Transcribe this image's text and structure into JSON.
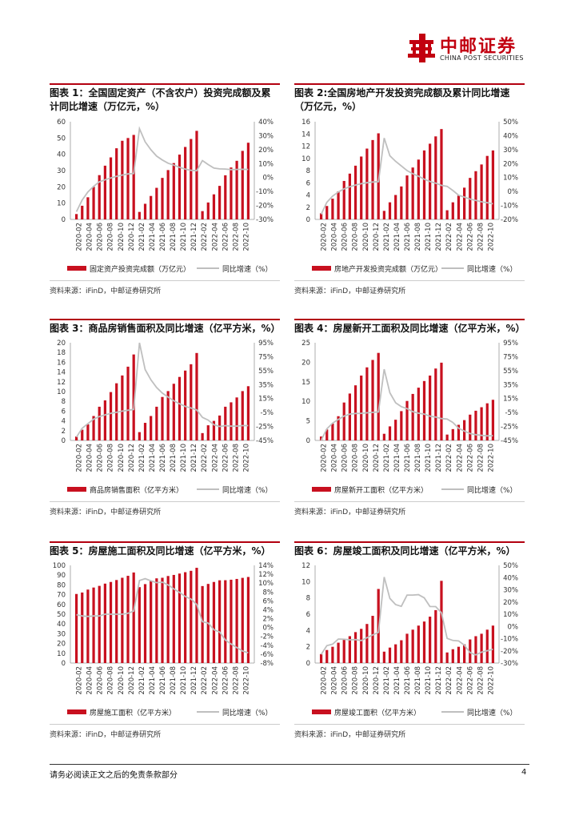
{
  "header": {
    "logo_cn": "中邮证券",
    "logo_en": "CHINA POST SECURITIES"
  },
  "colors": {
    "bar": "#c8101f",
    "line": "#bfbfbf",
    "accent": "#b3000f"
  },
  "x_labels": [
    "2020-02",
    "2020-04",
    "2020-06",
    "2020-08",
    "2020-10",
    "2020-12",
    "2021-02",
    "2021-04",
    "2021-06",
    "2021-08",
    "2021-10",
    "2021-12",
    "2022-02",
    "2022-04",
    "2022-06",
    "2022-08",
    "2022-10"
  ],
  "source_text": "资料来源：iFinD，中邮证券研究所",
  "footer": {
    "disclaimer": "请务必阅读正文之后的免责条款部分",
    "page": "4"
  },
  "chart_data": [
    {
      "type": "bar",
      "title": "图表 1：全国固定资产（不含农户）投资完成额及累计同比增速（万亿元，%）",
      "categories": [
        "2020-02",
        "2020-03",
        "2020-04",
        "2020-05",
        "2020-06",
        "2020-07",
        "2020-08",
        "2020-09",
        "2020-10",
        "2020-11",
        "2020-12",
        "2021-02",
        "2021-03",
        "2021-04",
        "2021-05",
        "2021-06",
        "2021-07",
        "2021-08",
        "2021-09",
        "2021-10",
        "2021-11",
        "2021-12",
        "2022-02",
        "2022-03",
        "2022-04",
        "2022-05",
        "2022-06",
        "2022-07",
        "2022-08",
        "2022-09",
        "2022-10"
      ],
      "series": [
        {
          "name": "固定资产投资完成额（万亿元）",
          "axis": "left",
          "values": [
            3.3,
            8.4,
            13.6,
            20.0,
            27.2,
            33.0,
            38.1,
            43.7,
            48.3,
            50.0,
            51.9,
            4.6,
            9.6,
            14.4,
            19.4,
            25.5,
            30.3,
            34.6,
            39.8,
            44.5,
            49.4,
            54.4,
            5.1,
            10.4,
            15.4,
            20.6,
            27.1,
            31.9,
            36.0,
            42.1,
            47.1
          ]
        },
        {
          "name": "同比增速（%）",
          "axis": "right",
          "values": [
            -24.5,
            -16.1,
            -10.3,
            -6.3,
            -3.1,
            -1.6,
            -0.3,
            0.8,
            1.8,
            2.6,
            2.9,
            35.0,
            25.6,
            19.9,
            15.4,
            12.6,
            10.3,
            8.9,
            7.3,
            6.1,
            5.2,
            4.9,
            12.2,
            9.3,
            6.8,
            6.2,
            6.1,
            5.7,
            5.8,
            5.9,
            5.8
          ]
        }
      ],
      "ylim_left": [
        0,
        60
      ],
      "yticks_left": [
        "60",
        "50",
        "40",
        "30",
        "20",
        "10",
        "0"
      ],
      "ylim_right": [
        -30,
        40
      ],
      "yticks_right": [
        "40%",
        "30%",
        "20%",
        "10%",
        "0%",
        "-10%",
        "-20%",
        "-30%"
      ],
      "legend": "bottom"
    },
    {
      "type": "bar",
      "title": "图表 2:全国房地产开发投资完成额及累计同比增速（万亿元，%）",
      "categories": [
        "2020-02",
        "2020-03",
        "2020-04",
        "2020-05",
        "2020-06",
        "2020-07",
        "2020-08",
        "2020-09",
        "2020-10",
        "2020-11",
        "2020-12",
        "2021-02",
        "2021-03",
        "2021-04",
        "2021-05",
        "2021-06",
        "2021-07",
        "2021-08",
        "2021-09",
        "2021-10",
        "2021-11",
        "2021-12",
        "2022-02",
        "2022-03",
        "2022-04",
        "2022-05",
        "2022-06",
        "2022-07",
        "2022-08",
        "2022-09",
        "2022-10"
      ],
      "series": [
        {
          "name": "房地产开发投资完成额（万亿元）",
          "axis": "left",
          "values": [
            1.0,
            2.2,
            3.4,
            4.6,
            6.3,
            7.5,
            8.8,
            10.3,
            11.6,
            13.0,
            14.1,
            1.4,
            2.8,
            4.0,
            5.4,
            7.2,
            8.5,
            9.8,
            11.3,
            12.4,
            13.6,
            14.8,
            1.5,
            2.8,
            3.9,
            5.2,
            6.8,
            7.9,
            9.0,
            10.4,
            11.3
          ]
        },
        {
          "name": "同比增速（%）",
          "axis": "right",
          "values": [
            -16.3,
            -7.7,
            -3.3,
            -0.3,
            1.9,
            3.4,
            4.6,
            5.6,
            6.3,
            6.8,
            7.0,
            38.3,
            25.6,
            21.6,
            18.3,
            15.0,
            12.7,
            10.9,
            8.8,
            7.2,
            6.0,
            4.4,
            3.7,
            0.7,
            -2.7,
            -4.0,
            -5.4,
            -6.4,
            -7.4,
            -8.0,
            -8.8
          ]
        }
      ],
      "ylim_left": [
        0,
        16
      ],
      "yticks_left": [
        "16",
        "14",
        "12",
        "10",
        "8",
        "6",
        "4",
        "2",
        "0"
      ],
      "ylim_right": [
        -20,
        50
      ],
      "yticks_right": [
        "50%",
        "40%",
        "30%",
        "20%",
        "10%",
        "0%",
        "-10%",
        "-20%"
      ],
      "legend": "bottom"
    },
    {
      "type": "bar",
      "title": "图表 3：商品房销售面积及同比增速（亿平方米，%）",
      "categories": [
        "2020-02",
        "2020-03",
        "2020-04",
        "2020-05",
        "2020-06",
        "2020-07",
        "2020-08",
        "2020-09",
        "2020-10",
        "2020-11",
        "2020-12",
        "2021-02",
        "2021-03",
        "2021-04",
        "2021-05",
        "2021-06",
        "2021-07",
        "2021-08",
        "2021-09",
        "2021-10",
        "2021-11",
        "2021-12",
        "2022-02",
        "2022-03",
        "2022-04",
        "2022-05",
        "2022-06",
        "2022-07",
        "2022-08",
        "2022-09",
        "2022-10"
      ],
      "series": [
        {
          "name": "商品房销售面积（亿平方米）",
          "axis": "left",
          "values": [
            0.8,
            2.2,
            3.3,
            5.0,
            6.9,
            8.2,
            9.9,
            11.7,
            13.3,
            15.1,
            17.6,
            1.7,
            3.6,
            5.0,
            6.9,
            8.9,
            10.1,
            11.6,
            13.0,
            14.3,
            15.6,
            17.9,
            1.5,
            3.1,
            4.0,
            5.1,
            6.9,
            7.8,
            8.8,
            10.1,
            11.1
          ]
        },
        {
          "name": "同比增速（%）",
          "axis": "right",
          "values": [
            -39.9,
            -26.3,
            -19.3,
            -12.3,
            -8.4,
            -5.8,
            -3.3,
            -1.8,
            0,
            1.3,
            2.6,
            104.9,
            63.8,
            48.1,
            36.3,
            27.7,
            21.5,
            15.9,
            11.3,
            7.3,
            4.8,
            1.9,
            -9.6,
            -13.8,
            -20.9,
            -23.6,
            -22.2,
            -23.1,
            -23.0,
            -22.2,
            -22.3
          ]
        }
      ],
      "ylim_left": [
        0,
        20
      ],
      "yticks_left": [
        "20",
        "18",
        "16",
        "14",
        "12",
        "10",
        "8",
        "6",
        "4",
        "2",
        "0"
      ],
      "ylim_right": [
        -45,
        105
      ],
      "yticks_right": [
        "95%",
        "75%",
        "55%",
        "35%",
        "15%",
        "-5%",
        "-25%",
        "-45%"
      ],
      "legend": "bottom"
    },
    {
      "type": "bar",
      "title": "图表 4：房屋新开工面积及同比增速（亿平方米，%）",
      "categories": [
        "2020-02",
        "2020-03",
        "2020-04",
        "2020-05",
        "2020-06",
        "2020-07",
        "2020-08",
        "2020-09",
        "2020-10",
        "2020-11",
        "2020-12",
        "2021-02",
        "2021-03",
        "2021-04",
        "2021-05",
        "2021-06",
        "2021-07",
        "2021-08",
        "2021-09",
        "2021-10",
        "2021-11",
        "2021-12",
        "2022-02",
        "2022-03",
        "2022-04",
        "2022-05",
        "2022-06",
        "2022-07",
        "2022-08",
        "2022-09",
        "2022-10"
      ],
      "series": [
        {
          "name": "房屋新开工面积（亿平方米）",
          "axis": "left",
          "values": [
            1.0,
            2.8,
            4.3,
            6.2,
            9.7,
            12.0,
            14.1,
            16.6,
            18.7,
            20.6,
            22.4,
            1.7,
            3.6,
            5.3,
            7.5,
            10.1,
            11.9,
            13.5,
            15.2,
            16.6,
            18.4,
            19.9,
            1.5,
            2.9,
            4.0,
            5.2,
            6.6,
            7.6,
            8.5,
            9.5,
            10.4
          ]
        },
        {
          "name": "同比增速（%）",
          "axis": "right",
          "values": [
            -44.9,
            -27.2,
            -18.4,
            -12.8,
            -7.6,
            -4.5,
            -3.6,
            -3.4,
            -2.6,
            -2.0,
            -1.2,
            64.3,
            28.2,
            12.8,
            6.9,
            3.8,
            -0.9,
            -3.2,
            -4.5,
            -7.7,
            -9.1,
            -11.4,
            -12.2,
            -17.5,
            -26.3,
            -30.6,
            -34.4,
            -36.1,
            -37.2,
            -38.0,
            -37.8
          ]
        }
      ],
      "ylim_left": [
        0,
        25
      ],
      "yticks_left": [
        "25",
        "20",
        "15",
        "10",
        "5",
        "0"
      ],
      "ylim_right": [
        -45,
        105
      ],
      "yticks_right": [
        "95%",
        "75%",
        "55%",
        "35%",
        "15%",
        "-5%",
        "-25%",
        "-45%"
      ],
      "legend": "bottom"
    },
    {
      "type": "bar",
      "title": "图表 5：房屋施工面积及同比增速（亿平方米，%）",
      "categories": [
        "2020-02",
        "2020-03",
        "2020-04",
        "2020-05",
        "2020-06",
        "2020-07",
        "2020-08",
        "2020-09",
        "2020-10",
        "2020-11",
        "2020-12",
        "2021-02",
        "2021-03",
        "2021-04",
        "2021-05",
        "2021-06",
        "2021-07",
        "2021-08",
        "2021-09",
        "2021-10",
        "2021-11",
        "2021-12",
        "2022-02",
        "2022-03",
        "2022-04",
        "2022-05",
        "2022-06",
        "2022-07",
        "2022-08",
        "2022-09",
        "2022-10"
      ],
      "series": [
        {
          "name": "房屋施工面积（亿平方米）",
          "axis": "left",
          "values": [
            70.7,
            72.2,
            75.2,
            77.3,
            79.0,
            81.3,
            83.0,
            85.0,
            87.3,
            89.3,
            92.7,
            77.7,
            80.8,
            84.0,
            86.7,
            87.3,
            89.1,
            90.2,
            91.6,
            93.0,
            94.4,
            97.5,
            78.8,
            81.0,
            83.0,
            84.7,
            84.8,
            85.3,
            86.1,
            87.2,
            88.1
          ]
        },
        {
          "name": "同比增速（%）",
          "axis": "right",
          "values": [
            2.9,
            2.6,
            2.5,
            2.6,
            2.6,
            3.0,
            3.0,
            3.0,
            3.0,
            3.2,
            3.7,
            10.6,
            11.0,
            10.5,
            10.1,
            10.2,
            9.6,
            8.7,
            7.9,
            7.0,
            6.4,
            5.2,
            1.3,
            1.0,
            -0.5,
            -1.0,
            -2.8,
            -3.7,
            -4.5,
            -5.3,
            -5.7
          ]
        }
      ],
      "ylim_left": [
        0,
        100
      ],
      "yticks_left": [
        "100",
        "90",
        "80",
        "70",
        "60",
        "50",
        "40",
        "30",
        "20",
        "10",
        "0"
      ],
      "ylim_right": [
        -8,
        14
      ],
      "yticks_right": [
        "14%",
        "12%",
        "10%",
        "8%",
        "6%",
        "4%",
        "2%",
        "0%",
        "-2%",
        "-4%",
        "-6%",
        "-8%"
      ],
      "legend": "bottom"
    },
    {
      "type": "bar",
      "title": "图表 6：房屋竣工面积及同比增速（亿平方米，%）",
      "categories": [
        "2020-02",
        "2020-03",
        "2020-04",
        "2020-05",
        "2020-06",
        "2020-07",
        "2020-08",
        "2020-09",
        "2020-10",
        "2020-11",
        "2020-12",
        "2021-02",
        "2021-03",
        "2021-04",
        "2021-05",
        "2021-06",
        "2021-07",
        "2021-08",
        "2021-09",
        "2021-10",
        "2021-11",
        "2021-12",
        "2022-02",
        "2022-03",
        "2022-04",
        "2022-05",
        "2022-06",
        "2022-07",
        "2022-08",
        "2022-09",
        "2022-10"
      ],
      "series": [
        {
          "name": "房屋竣工面积（亿平方米）",
          "axis": "left",
          "values": [
            1.1,
            1.6,
            2.0,
            2.5,
            2.9,
            3.3,
            3.8,
            4.2,
            4.8,
            5.8,
            9.1,
            1.4,
            1.9,
            2.3,
            2.8,
            3.6,
            4.1,
            4.6,
            5.1,
            5.7,
            6.5,
            10.1,
            1.3,
            1.7,
            2.0,
            2.3,
            2.9,
            3.3,
            3.6,
            4.1,
            4.6
          ]
        },
        {
          "name": "同比增速（%）",
          "axis": "right",
          "values": [
            -22.9,
            -15.8,
            -14.5,
            -10.3,
            -10.5,
            -11.0,
            -10.8,
            -11.6,
            -9.2,
            -7.0,
            -4.9,
            40.4,
            22.9,
            17.9,
            16.4,
            25.7,
            25.7,
            26.0,
            23.4,
            16.3,
            16.2,
            11.2,
            -9.8,
            -11.5,
            -11.9,
            -15.3,
            -21.5,
            -23.3,
            -21.1,
            -19.9,
            -18.7
          ]
        }
      ],
      "ylim_left": [
        0,
        12
      ],
      "yticks_left": [
        "12",
        "10",
        "8",
        "6",
        "4",
        "2",
        "0"
      ],
      "ylim_right": [
        -30,
        50
      ],
      "yticks_right": [
        "50%",
        "40%",
        "30%",
        "20%",
        "10%",
        "0%",
        "-10%",
        "-20%",
        "-30%"
      ],
      "legend": "bottom"
    }
  ]
}
